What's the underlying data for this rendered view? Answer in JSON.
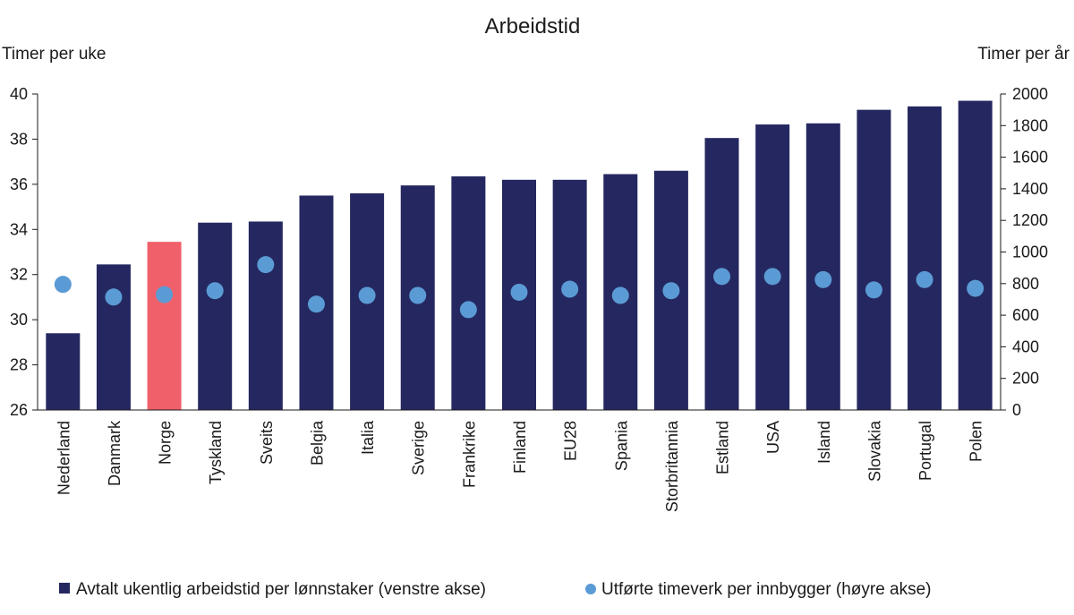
{
  "chart_data": {
    "type": "bar",
    "title": "Arbeidstid",
    "left_axis_label": "Timer per uke",
    "right_axis_label": "Timer per år",
    "categories": [
      "Nederland",
      "Danmark",
      "Norge",
      "Tyskland",
      "Sveits",
      "Belgia",
      "Italia",
      "Sverige",
      "Frankrike",
      "Finland",
      "EU28",
      "Spania",
      "Storbritannia",
      "Estland",
      "USA",
      "Island",
      "Slovakia",
      "Portugal",
      "Polen"
    ],
    "highlight_category": "Norge",
    "ylim_left": [
      26,
      40
    ],
    "yticks_left": [
      "26",
      "28",
      "30",
      "32",
      "34",
      "36",
      "38",
      "40"
    ],
    "ylim_right": [
      0,
      2000
    ],
    "yticks_right": [
      "0",
      "200",
      "400",
      "600",
      "800",
      "1000",
      "1200",
      "1400",
      "1600",
      "1800",
      "2000"
    ],
    "grid": false,
    "legend_position": "bottom",
    "series": [
      {
        "name": "Avtalt ukentlig arbeidstid per lønnstaker (venstre akse)",
        "type": "bar",
        "axis": "left",
        "color": "#252860",
        "highlight_color": "#f0606a",
        "values": [
          29.4,
          32.45,
          33.45,
          34.3,
          34.35,
          35.5,
          35.6,
          35.95,
          36.35,
          36.2,
          36.2,
          36.45,
          36.6,
          38.05,
          38.65,
          38.7,
          39.3,
          39.45,
          39.7
        ]
      },
      {
        "name": "Utførte timeverk per innbygger (høyre akse)",
        "type": "scatter",
        "axis": "right",
        "color": "#5b9bd5",
        "values": [
          795,
          715,
          730,
          755,
          920,
          670,
          725,
          725,
          635,
          745,
          765,
          725,
          755,
          845,
          845,
          825,
          760,
          825,
          770
        ]
      }
    ]
  }
}
